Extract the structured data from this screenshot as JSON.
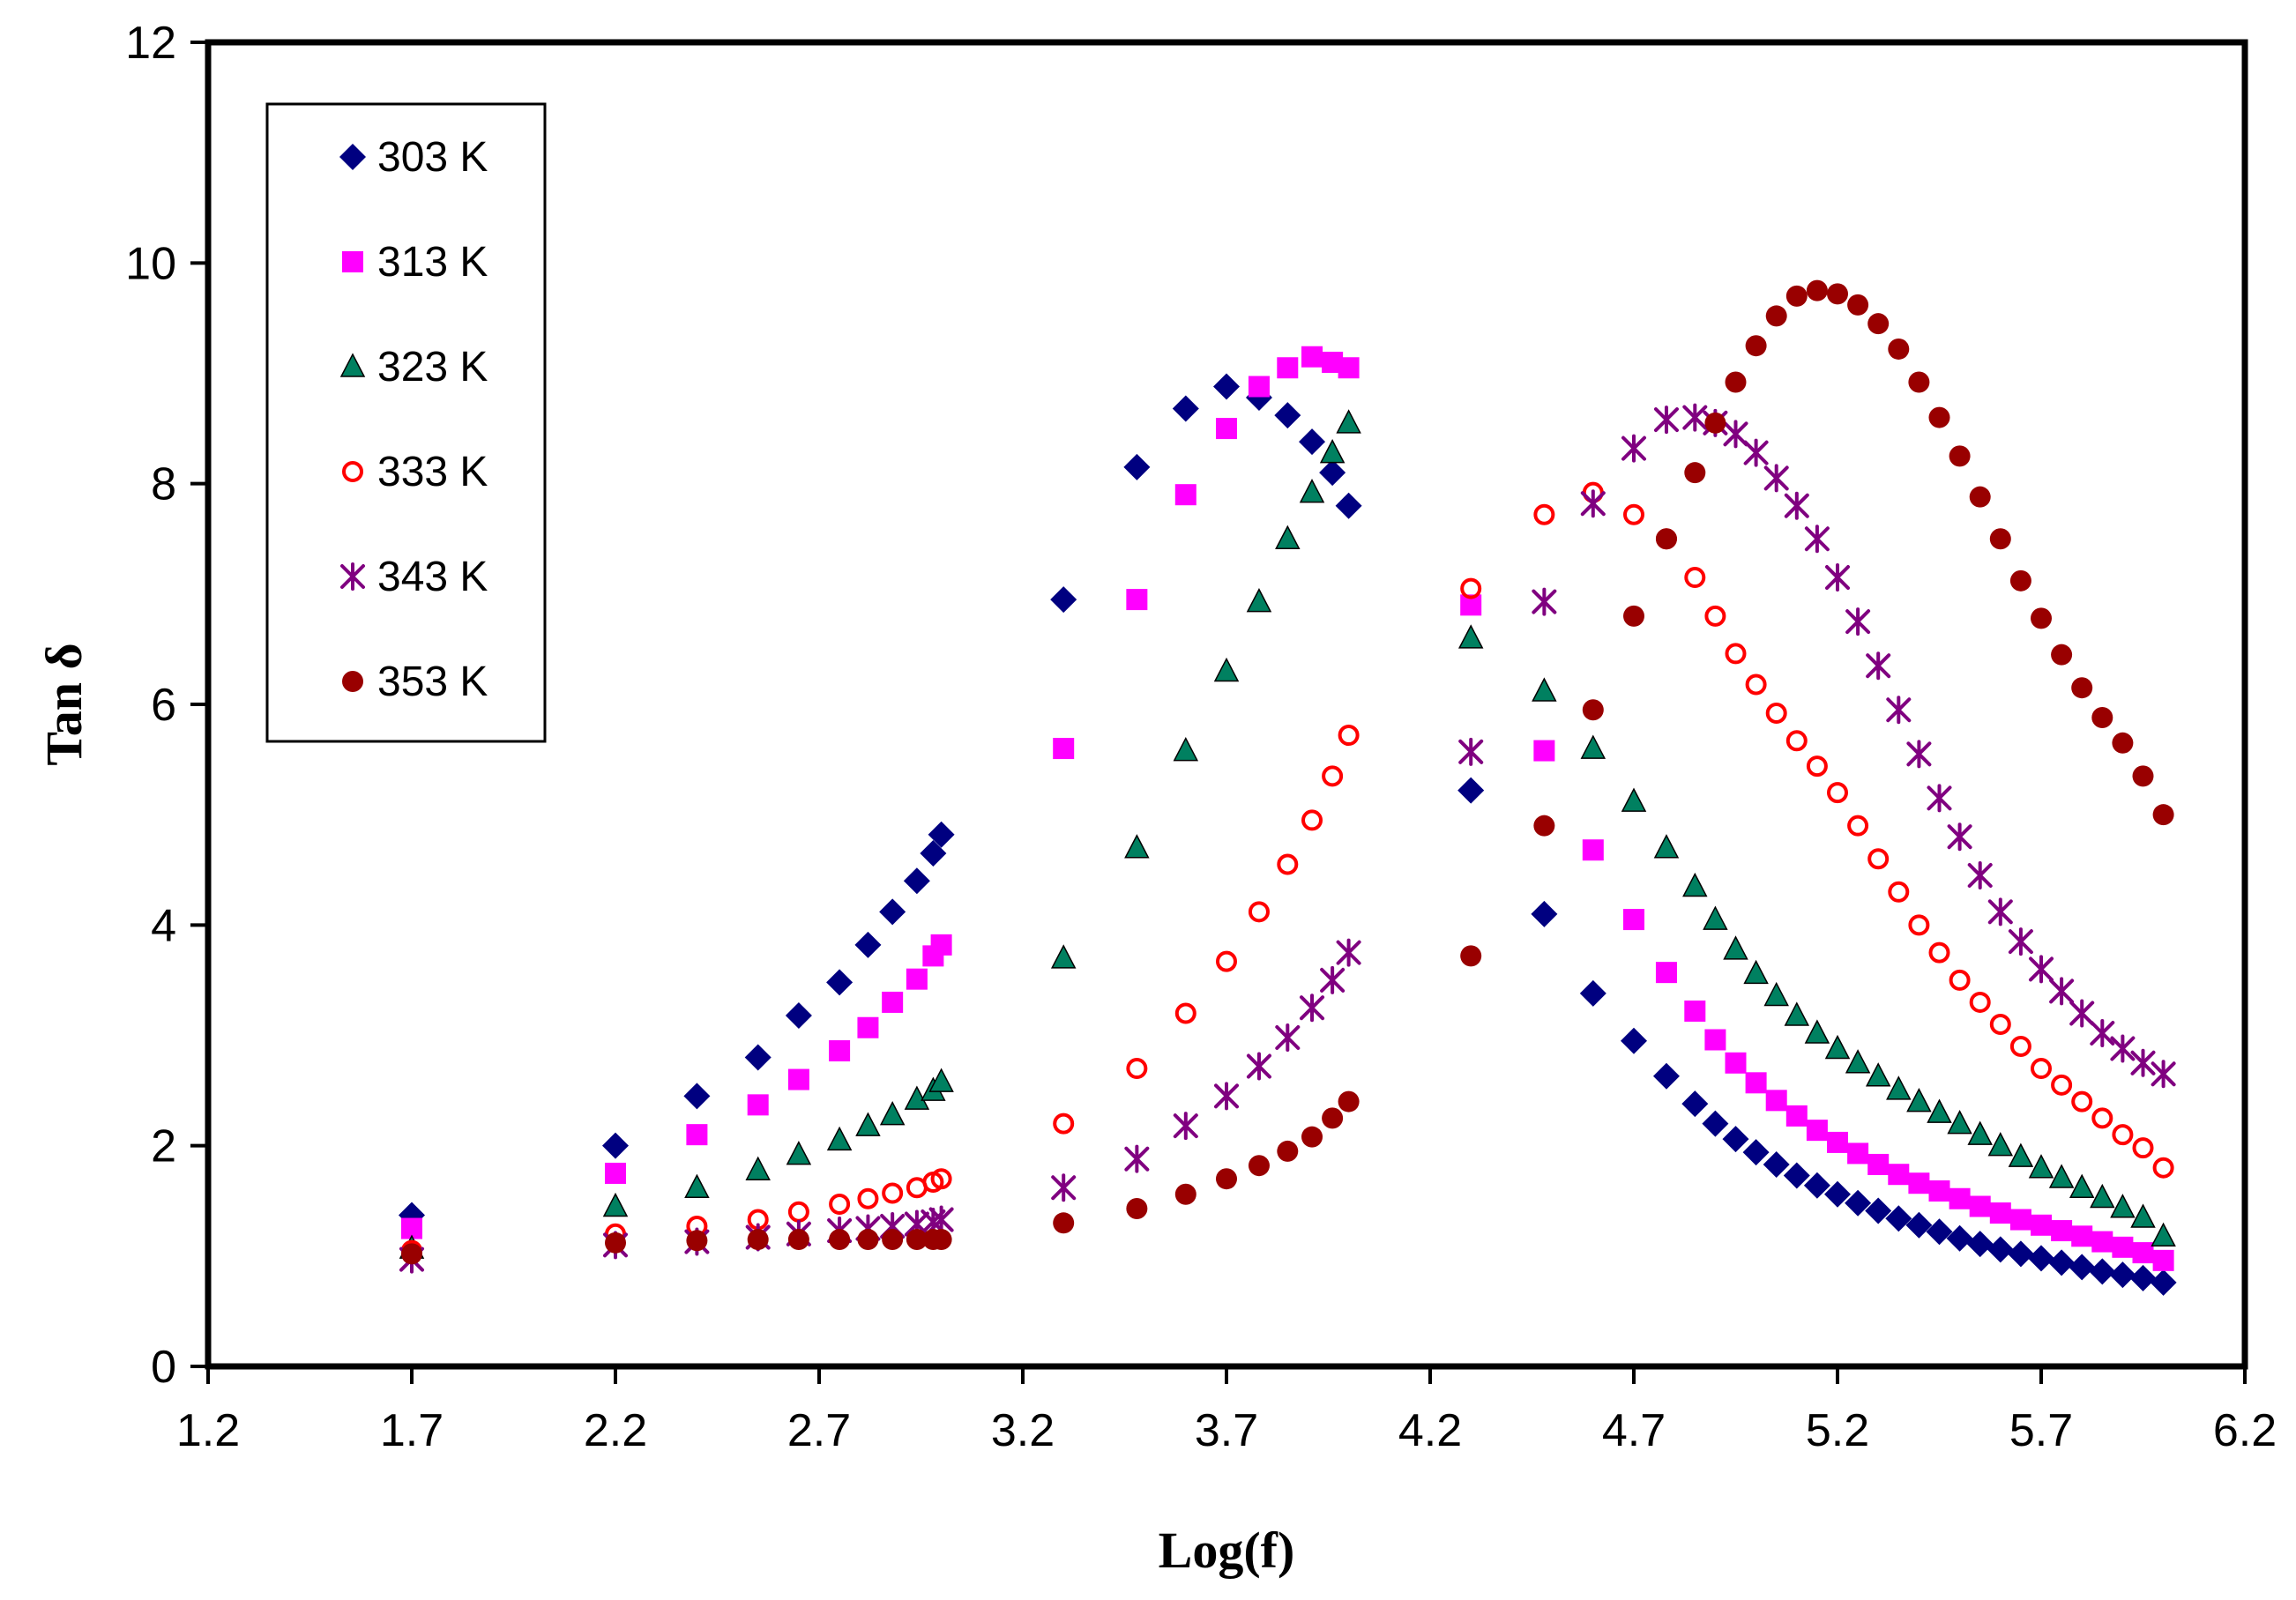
{
  "chart_data": {
    "type": "scatter",
    "title": "",
    "xlabel": "Log(f)",
    "ylabel": "Tan δ",
    "xlim": [
      1.2,
      6.2
    ],
    "ylim": [
      0,
      12
    ],
    "xticks": [
      "1.2",
      "1.7",
      "2.2",
      "2.7",
      "3.2",
      "3.7",
      "4.2",
      "4.7",
      "5.2",
      "5.7",
      "6.2"
    ],
    "yticks": [
      "0",
      "2",
      "4",
      "6",
      "8",
      "10",
      "12"
    ],
    "grid": false,
    "legend_position": "top-left",
    "series": [
      {
        "name": "303 K",
        "marker": "diamond",
        "color": "#000080",
        "x": [
          1.7,
          2.2,
          2.4,
          2.55,
          2.65,
          2.75,
          2.82,
          2.88,
          2.94,
          2.98,
          3.0,
          3.3,
          3.48,
          3.6,
          3.7,
          3.78,
          3.85,
          3.91,
          3.96,
          4.0,
          4.3,
          4.48,
          4.6,
          4.7,
          4.78,
          4.85,
          4.9,
          4.95,
          5.0,
          5.05,
          5.1,
          5.15,
          5.2,
          5.25,
          5.3,
          5.35,
          5.4,
          5.45,
          5.5,
          5.55,
          5.6,
          5.65,
          5.7,
          5.75,
          5.8,
          5.85,
          5.9,
          5.95,
          6.0
        ],
        "y": [
          1.37,
          2.0,
          2.45,
          2.8,
          3.18,
          3.48,
          3.82,
          4.12,
          4.4,
          4.65,
          4.82,
          6.95,
          8.15,
          8.68,
          8.88,
          8.78,
          8.62,
          8.38,
          8.1,
          7.8,
          5.22,
          4.1,
          3.38,
          2.95,
          2.63,
          2.38,
          2.2,
          2.06,
          1.94,
          1.83,
          1.73,
          1.64,
          1.56,
          1.48,
          1.41,
          1.34,
          1.28,
          1.22,
          1.16,
          1.11,
          1.06,
          1.02,
          0.98,
          0.94,
          0.9,
          0.86,
          0.83,
          0.8,
          0.76
        ]
      },
      {
        "name": "313 K",
        "marker": "square",
        "color": "#FF00FF",
        "x": [
          1.7,
          2.2,
          2.4,
          2.55,
          2.65,
          2.75,
          2.82,
          2.88,
          2.94,
          2.98,
          3.0,
          3.3,
          3.48,
          3.6,
          3.7,
          3.78,
          3.85,
          3.91,
          3.96,
          4.0,
          4.3,
          4.48,
          4.6,
          4.7,
          4.78,
          4.85,
          4.9,
          4.95,
          5.0,
          5.05,
          5.1,
          5.15,
          5.2,
          5.25,
          5.3,
          5.35,
          5.4,
          5.45,
          5.5,
          5.55,
          5.6,
          5.65,
          5.7,
          5.75,
          5.8,
          5.85,
          5.9,
          5.95,
          6.0
        ],
        "y": [
          1.25,
          1.75,
          2.1,
          2.37,
          2.6,
          2.86,
          3.07,
          3.3,
          3.51,
          3.72,
          3.82,
          5.6,
          6.95,
          7.9,
          8.5,
          8.88,
          9.05,
          9.15,
          9.1,
          9.05,
          6.9,
          5.58,
          4.68,
          4.05,
          3.57,
          3.22,
          2.96,
          2.75,
          2.57,
          2.41,
          2.27,
          2.14,
          2.03,
          1.93,
          1.83,
          1.74,
          1.66,
          1.59,
          1.52,
          1.45,
          1.39,
          1.33,
          1.28,
          1.23,
          1.18,
          1.13,
          1.08,
          1.03,
          0.96
        ]
      },
      {
        "name": "323 K",
        "marker": "triangle",
        "color": "#008060",
        "x": [
          1.7,
          2.2,
          2.4,
          2.55,
          2.65,
          2.75,
          2.82,
          2.88,
          2.94,
          2.98,
          3.0,
          3.3,
          3.48,
          3.6,
          3.7,
          3.78,
          3.85,
          3.91,
          3.96,
          4.0,
          4.3,
          4.48,
          4.6,
          4.7,
          4.78,
          4.85,
          4.9,
          4.95,
          5.0,
          5.05,
          5.1,
          5.15,
          5.2,
          5.25,
          5.3,
          5.35,
          5.4,
          5.45,
          5.5,
          5.55,
          5.6,
          5.65,
          5.7,
          5.75,
          5.8,
          5.85,
          5.9,
          5.95,
          6.0
        ],
        "y": [
          1.07,
          1.45,
          1.62,
          1.78,
          1.92,
          2.05,
          2.18,
          2.28,
          2.42,
          2.5,
          2.58,
          3.7,
          4.7,
          5.58,
          6.3,
          6.93,
          7.5,
          7.92,
          8.28,
          8.55,
          6.6,
          6.12,
          5.6,
          5.12,
          4.7,
          4.35,
          4.05,
          3.78,
          3.56,
          3.36,
          3.18,
          3.02,
          2.88,
          2.75,
          2.63,
          2.51,
          2.4,
          2.3,
          2.2,
          2.1,
          2.0,
          1.9,
          1.8,
          1.71,
          1.62,
          1.53,
          1.44,
          1.35,
          1.18
        ]
      },
      {
        "name": "333 K",
        "marker": "circle-open",
        "color": "#FF0000",
        "x": [
          1.7,
          2.2,
          2.4,
          2.55,
          2.65,
          2.75,
          2.82,
          2.88,
          2.94,
          2.98,
          3.0,
          3.3,
          3.48,
          3.6,
          3.7,
          3.78,
          3.85,
          3.91,
          3.96,
          4.0,
          4.3,
          4.48,
          4.6,
          4.7,
          4.78,
          4.85,
          4.9,
          4.95,
          5.0,
          5.05,
          5.1,
          5.15,
          5.2,
          5.25,
          5.3,
          5.35,
          5.4,
          5.45,
          5.5,
          5.55,
          5.6,
          5.65,
          5.7,
          5.75,
          5.8,
          5.85,
          5.9,
          5.95,
          6.0
        ],
        "y": [
          1.05,
          1.2,
          1.27,
          1.33,
          1.4,
          1.47,
          1.52,
          1.57,
          1.62,
          1.67,
          1.7,
          2.2,
          2.7,
          3.2,
          3.67,
          4.12,
          4.55,
          4.95,
          5.35,
          5.72,
          7.05,
          7.72,
          7.92,
          7.72,
          7.5,
          7.15,
          6.8,
          6.46,
          6.18,
          5.92,
          5.67,
          5.44,
          5.2,
          4.9,
          4.6,
          4.3,
          4.0,
          3.75,
          3.5,
          3.3,
          3.1,
          2.9,
          2.7,
          2.55,
          2.4,
          2.25,
          2.1,
          1.98,
          1.8
        ]
      },
      {
        "name": "343 K",
        "marker": "asterisk",
        "color": "#800080",
        "x": [
          1.7,
          2.2,
          2.4,
          2.55,
          2.65,
          2.75,
          2.82,
          2.88,
          2.94,
          2.98,
          3.0,
          3.3,
          3.48,
          3.6,
          3.7,
          3.78,
          3.85,
          3.91,
          3.96,
          4.0,
          4.3,
          4.48,
          4.6,
          4.7,
          4.78,
          4.85,
          4.9,
          4.95,
          5.0,
          5.05,
          5.1,
          5.15,
          5.2,
          5.25,
          5.3,
          5.35,
          5.4,
          5.45,
          5.5,
          5.55,
          5.6,
          5.65,
          5.7,
          5.75,
          5.8,
          5.85,
          5.9,
          5.95,
          6.0
        ],
        "y": [
          0.97,
          1.1,
          1.13,
          1.17,
          1.2,
          1.23,
          1.25,
          1.27,
          1.29,
          1.31,
          1.33,
          1.62,
          1.88,
          2.18,
          2.45,
          2.72,
          2.98,
          3.25,
          3.5,
          3.75,
          5.57,
          6.93,
          7.82,
          8.32,
          8.58,
          8.6,
          8.55,
          8.45,
          8.28,
          8.05,
          7.8,
          7.5,
          7.15,
          6.75,
          6.35,
          5.95,
          5.55,
          5.15,
          4.8,
          4.45,
          4.12,
          3.85,
          3.6,
          3.4,
          3.2,
          3.02,
          2.88,
          2.75,
          2.65
        ]
      },
      {
        "name": "353 K",
        "marker": "circle",
        "color": "#990000",
        "x": [
          1.7,
          2.2,
          2.4,
          2.55,
          2.65,
          2.75,
          2.82,
          2.88,
          2.94,
          2.98,
          3.0,
          3.3,
          3.48,
          3.6,
          3.7,
          3.78,
          3.85,
          3.91,
          3.96,
          4.0,
          4.3,
          4.48,
          4.6,
          4.7,
          4.78,
          4.85,
          4.9,
          4.95,
          5.0,
          5.05,
          5.1,
          5.15,
          5.2,
          5.25,
          5.3,
          5.35,
          5.4,
          5.45,
          5.5,
          5.55,
          5.6,
          5.65,
          5.7,
          5.75,
          5.8,
          5.85,
          5.9,
          5.95,
          6.0
        ],
        "y": [
          1.02,
          1.12,
          1.14,
          1.15,
          1.15,
          1.15,
          1.15,
          1.15,
          1.15,
          1.15,
          1.15,
          1.3,
          1.43,
          1.56,
          1.7,
          1.82,
          1.95,
          2.08,
          2.25,
          2.4,
          3.72,
          4.9,
          5.95,
          6.8,
          7.5,
          8.1,
          8.55,
          8.92,
          9.25,
          9.52,
          9.7,
          9.75,
          9.72,
          9.62,
          9.45,
          9.22,
          8.92,
          8.6,
          8.25,
          7.88,
          7.5,
          7.12,
          6.78,
          6.45,
          6.15,
          5.88,
          5.65,
          5.35,
          5.0
        ]
      }
    ]
  }
}
